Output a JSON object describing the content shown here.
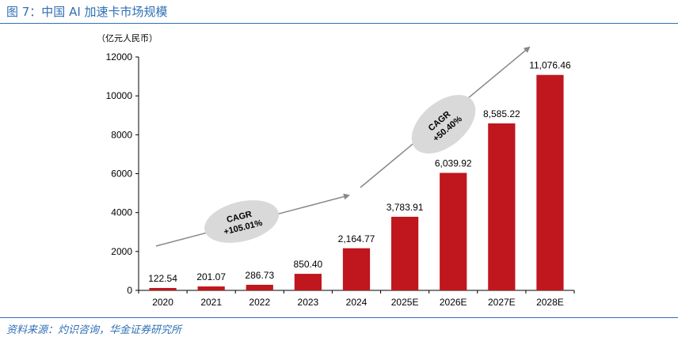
{
  "figure": {
    "title": "图 7：中国 AI 加速卡市场规模",
    "source": "资料来源：灼识咨询，华金证券研究所"
  },
  "chart_data": {
    "type": "bar",
    "unit_label": "（亿元人民币）",
    "categories": [
      "2020",
      "2021",
      "2022",
      "2023",
      "2024",
      "2025E",
      "2026E",
      "2027E",
      "2028E"
    ],
    "values": [
      122.54,
      201.07,
      286.73,
      850.4,
      2164.77,
      3783.91,
      6039.92,
      8585.22,
      11076.46
    ],
    "value_labels": [
      "122.54",
      "201.07",
      "286.73",
      "850.40",
      "2,164.77",
      "3,783.91",
      "6,039.92",
      "8,585.22",
      "11,076.46"
    ],
    "yticks": [
      0,
      2000,
      4000,
      6000,
      8000,
      10000,
      12000
    ],
    "ylim": [
      0,
      12000
    ],
    "bar_color": "#c0161e",
    "annotations": [
      {
        "text_line1": "CAGR",
        "text_line2": "+105.01%"
      },
      {
        "text_line1": "CAGR",
        "text_line2": "+50.40%"
      }
    ]
  }
}
